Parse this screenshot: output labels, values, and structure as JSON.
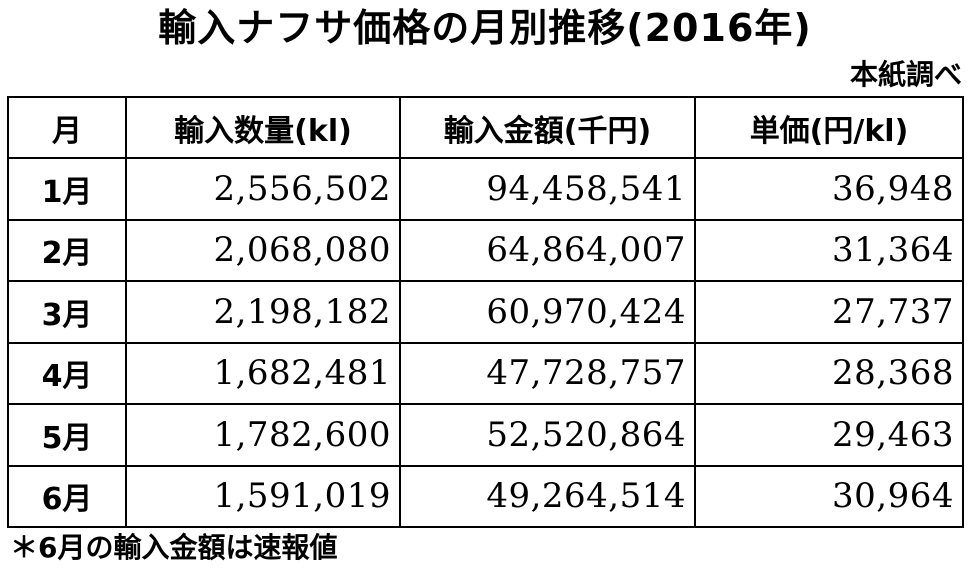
{
  "title": "輸入ナフサ価格の月別推移(2016年)",
  "source": "本紙調べ",
  "table": {
    "headers": [
      "月",
      "輸入数量(kl)",
      "輸入金額(千円)",
      "単価(円/kl)"
    ],
    "rows": [
      {
        "month": "1月",
        "volume": "2,556,502",
        "amount": "94,458,541",
        "unit_price": "36,948"
      },
      {
        "month": "2月",
        "volume": "2,068,080",
        "amount": "64,864,007",
        "unit_price": "31,364"
      },
      {
        "month": "3月",
        "volume": "2,198,182",
        "amount": "60,970,424",
        "unit_price": "27,737"
      },
      {
        "month": "4月",
        "volume": "1,682,481",
        "amount": "47,728,757",
        "unit_price": "28,368"
      },
      {
        "month": "5月",
        "volume": "1,782,600",
        "amount": "52,520,864",
        "unit_price": "29,463"
      },
      {
        "month": "6月",
        "volume": "1,591,019",
        "amount": "49,264,514",
        "unit_price": "30,964"
      }
    ]
  },
  "note": "＊6月の輸入金額は速報値"
}
